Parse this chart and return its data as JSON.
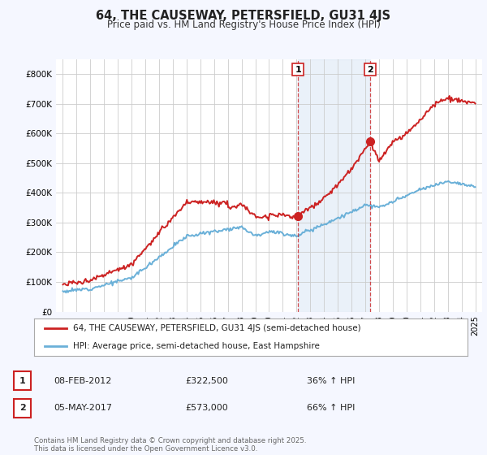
{
  "title": "64, THE CAUSEWAY, PETERSFIELD, GU31 4JS",
  "subtitle": "Price paid vs. HM Land Registry's House Price Index (HPI)",
  "ylim": [
    0,
    850000
  ],
  "yticks": [
    0,
    100000,
    200000,
    300000,
    400000,
    500000,
    600000,
    700000,
    800000
  ],
  "ytick_labels": [
    "£0",
    "£100K",
    "£200K",
    "£300K",
    "£400K",
    "£500K",
    "£600K",
    "£700K",
    "£800K"
  ],
  "hpi_color": "#6ab0d8",
  "price_color": "#cc2222",
  "purchase1_date": 2012.1,
  "purchase1_price": 322500,
  "purchase2_date": 2017.35,
  "purchase2_price": 573000,
  "annotation1_date": "08-FEB-2012",
  "annotation1_price": "£322,500",
  "annotation1_hpi": "36% ↑ HPI",
  "annotation2_date": "05-MAY-2017",
  "annotation2_price": "£573,000",
  "annotation2_hpi": "66% ↑ HPI",
  "legend_line1": "64, THE CAUSEWAY, PETERSFIELD, GU31 4JS (semi-detached house)",
  "legend_line2": "HPI: Average price, semi-detached house, East Hampshire",
  "footer": "Contains HM Land Registry data © Crown copyright and database right 2025.\nThis data is licensed under the Open Government Licence v3.0.",
  "bg_color": "#f5f7ff",
  "plot_bg": "#ffffff",
  "shade_color": "#dce8f5"
}
